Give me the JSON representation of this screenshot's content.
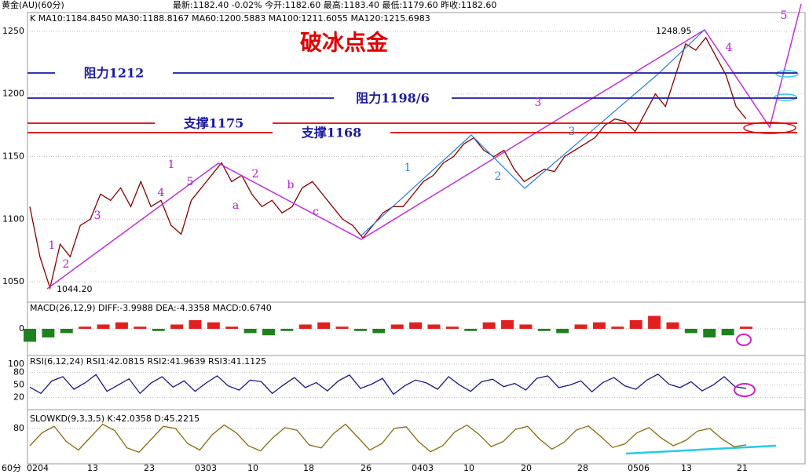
{
  "header": {
    "symbol": "黄金(AU)(60分)",
    "quote": "最新:1182.40 -0.02% 今开:1182.60 最高:1183.40 最低:1179.60 昨收:1182.60"
  },
  "chart_data": [
    {
      "type": "line",
      "legend": "K MA10:1184.8450 MA30:1188.8167 MA60:1200.5883 MA100:1211.6055 MA120:1215.6983",
      "title": "破冰点金",
      "color": "#8b0000",
      "values": [
        1110,
        1070,
        1045,
        1080,
        1070,
        1095,
        1100,
        1120,
        1115,
        1125,
        1110,
        1130,
        1110,
        1115,
        1095,
        1088,
        1115,
        1125,
        1135,
        1145,
        1130,
        1135,
        1120,
        1110,
        1115,
        1105,
        1110,
        1125,
        1130,
        1120,
        1110,
        1100,
        1095,
        1085,
        1095,
        1105,
        1110,
        1110,
        1120,
        1130,
        1135,
        1145,
        1150,
        1160,
        1165,
        1155,
        1150,
        1155,
        1140,
        1130,
        1135,
        1140,
        1138,
        1150,
        1155,
        1160,
        1165,
        1175,
        1180,
        1178,
        1170,
        1185,
        1200,
        1190,
        1215,
        1240,
        1235,
        1245,
        1230,
        1215,
        1190,
        1180
      ],
      "ylim": [
        1035,
        1265
      ],
      "yticks": [
        1050,
        1100,
        1150,
        1200,
        1250
      ],
      "levels": [
        "阻力1212",
        "阻力1198/6",
        "支撑1175",
        "支撑1168"
      ],
      "price_marks": [
        "1248.95",
        "1044.20"
      ],
      "wave_labels": [
        "1",
        "2",
        "a",
        "b",
        "c",
        "3",
        "4",
        "5",
        "5",
        "4",
        "3",
        "2",
        "1",
        "1",
        "2",
        "3"
      ]
    },
    {
      "type": "bar",
      "legend": "MACD(26,12,9) DIFF:-3.9988 DEA:-4.3358 MACD:0.6740",
      "values": [
        -6,
        -4,
        -2,
        1,
        2,
        3,
        1,
        -1,
        2,
        4,
        3,
        1,
        -2,
        -3,
        -1,
        2,
        3,
        1,
        -1,
        -2,
        2,
        3,
        2,
        1,
        -1,
        3,
        4,
        2,
        -1,
        -2,
        2,
        3,
        1,
        4,
        6,
        3,
        -2,
        -4,
        -3,
        1
      ],
      "ylim": [
        -12,
        12
      ],
      "yticks": [
        0
      ]
    },
    {
      "type": "line",
      "legend": "RSI(6,12,24) RSI1:42.0815 RSI2:41.9639 RSI3:41.1125",
      "color": "#1a1a80",
      "values": [
        45,
        30,
        60,
        70,
        40,
        55,
        75,
        35,
        50,
        65,
        30,
        55,
        70,
        45,
        60,
        35,
        55,
        72,
        48,
        38,
        62,
        58,
        30,
        50,
        68,
        44,
        56,
        36,
        60,
        74,
        42,
        52,
        66,
        28,
        48,
        62,
        55,
        40,
        70,
        50,
        35,
        58,
        64,
        46,
        54,
        38,
        66,
        72,
        44,
        50,
        60,
        34,
        56,
        68,
        48,
        40,
        62,
        76,
        52,
        44,
        58,
        36,
        50,
        70,
        46,
        42
      ],
      "ylim": [
        -5,
        115
      ],
      "yticks": [
        20,
        50,
        80,
        100
      ]
    },
    {
      "type": "line",
      "legend": "SLOWKD(9,3,3,5) K:42.0358 D:45.2215",
      "color": "#8a6a10",
      "values": [
        40,
        70,
        85,
        50,
        30,
        60,
        90,
        75,
        35,
        25,
        55,
        85,
        80,
        45,
        30,
        65,
        88,
        70,
        40,
        28,
        58,
        82,
        76,
        42,
        35,
        68,
        90,
        60,
        30,
        45,
        80,
        84,
        50,
        26,
        40,
        72,
        88,
        66,
        38,
        50,
        78,
        85,
        55,
        32,
        48,
        76,
        86,
        62,
        36,
        44,
        70,
        82,
        58,
        40,
        52,
        74,
        80,
        56,
        38,
        42
      ],
      "ylim": [
        0,
        120
      ],
      "yticks": [
        80
      ]
    }
  ],
  "x_labels": [
    "0204",
    "13",
    "23",
    "0303",
    "10",
    "18",
    "26",
    "0403",
    "10",
    "20",
    "28",
    "0506",
    "13",
    "21"
  ],
  "period": "60分"
}
